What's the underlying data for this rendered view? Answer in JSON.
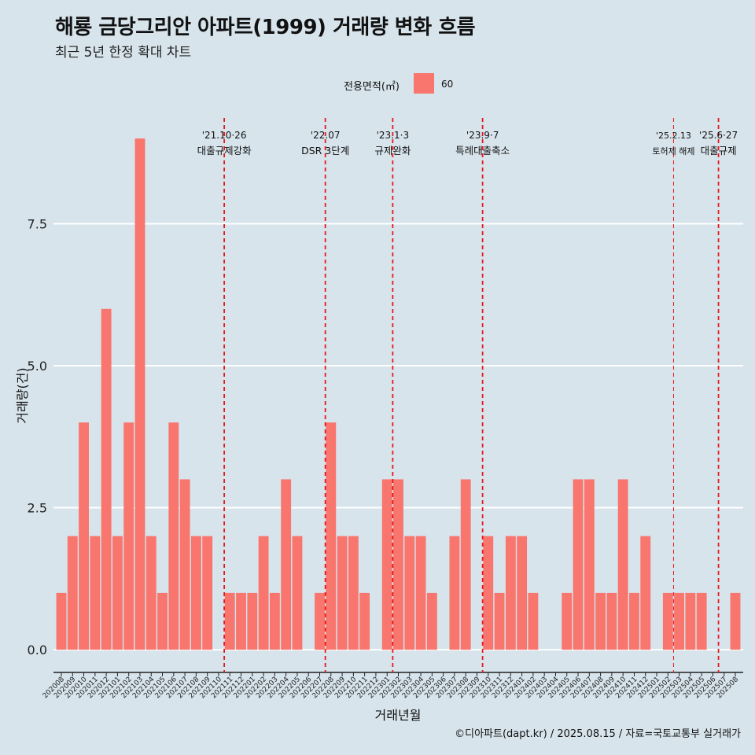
{
  "title": "해룡 금당그리안 아파트(1999) 거래량 변화 흐름",
  "subtitle": "최근 5년 한정 확대 차트",
  "caption": "©디아파트(dapt.kr) / 2025.08.15 / 자료=국토교통부 실거래가",
  "legend": {
    "title": "전용면적(㎡)",
    "label": "60",
    "color": "#f8766d"
  },
  "colors": {
    "background": "#d7e4ec",
    "bar": "#f8766d",
    "event_line": "#e8181c",
    "grid": "#ffffff"
  },
  "chart_data": {
    "type": "bar",
    "title": "해룡 금당그리안 아파트(1999) 거래량 변화 흐름",
    "subtitle": "최근 5년 한정 확대 차트",
    "xlabel": "거래년월",
    "ylabel": "거래량(건)",
    "ylim": [
      -0.4,
      9.5
    ],
    "yticks": [
      0.0,
      2.5,
      5.0,
      7.5
    ],
    "ytick_labels": [
      "0.0",
      "2.5",
      "5.0",
      "7.5"
    ],
    "grid": true,
    "legend_position": "top",
    "categories": [
      "202008",
      "202009",
      "202010",
      "202011",
      "202012",
      "202101",
      "202102",
      "202103",
      "202104",
      "202105",
      "202106",
      "202107",
      "202108",
      "202109",
      "202110",
      "202111",
      "202112",
      "202201",
      "202202",
      "202203",
      "202204",
      "202205",
      "202206",
      "202207",
      "202208",
      "202209",
      "202210",
      "202211",
      "202212",
      "202301",
      "202302",
      "202303",
      "202304",
      "202305",
      "202306",
      "202307",
      "202308",
      "202309",
      "202310",
      "202311",
      "202312",
      "202401",
      "202402",
      "202403",
      "202404",
      "202405",
      "202406",
      "202407",
      "202408",
      "202409",
      "202410",
      "202411",
      "202412",
      "202501",
      "202502",
      "202503",
      "202504",
      "202505",
      "202506",
      "202507",
      "202508"
    ],
    "series": [
      {
        "name": "60",
        "values": [
          1,
          2,
          4,
          2,
          6,
          2,
          4,
          9,
          2,
          1,
          4,
          3,
          2,
          2,
          0,
          1,
          1,
          1,
          2,
          1,
          3,
          2,
          0,
          1,
          4,
          2,
          2,
          1,
          0,
          3,
          3,
          2,
          2,
          1,
          0,
          2,
          3,
          0,
          2,
          1,
          2,
          2,
          1,
          0,
          0,
          1,
          3,
          3,
          1,
          1,
          3,
          1,
          2,
          0,
          1,
          1,
          1,
          1,
          0,
          0,
          1
        ]
      }
    ],
    "events": [
      {
        "position": 14.5,
        "line1": "'21.10·26",
        "line2": "대출규제강화",
        "style": "bold"
      },
      {
        "position": 23.5,
        "line1": "'22.07",
        "line2": "DSR 3단계",
        "style": "bold"
      },
      {
        "position": 29.5,
        "line1": "'23.1·3",
        "line2": "규제완화",
        "style": "bold"
      },
      {
        "position": 37.5,
        "line1": "'23.9·7",
        "line2": "특례대출축소",
        "style": "bold"
      },
      {
        "position": 54.5,
        "line1": "'25.2.13",
        "line2": "토허제 해제",
        "style": "thin"
      },
      {
        "position": 58.5,
        "line1": "'25.6·27",
        "line2": "대출규제",
        "style": "bold"
      }
    ]
  }
}
